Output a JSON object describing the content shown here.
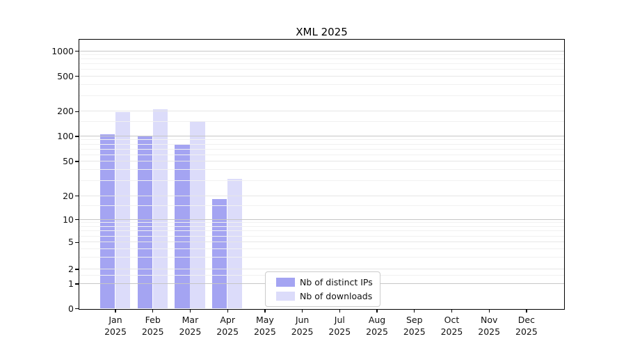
{
  "chart_data": {
    "type": "bar",
    "title": "XML 2025",
    "year_label": "2025",
    "categories": [
      "Jan",
      "Feb",
      "Mar",
      "Apr",
      "May",
      "Jun",
      "Jul",
      "Aug",
      "Sep",
      "Oct",
      "Nov",
      "Dec"
    ],
    "series": [
      {
        "name": "Nb of distinct IPs",
        "color": "#a4a4f2",
        "values": [
          105,
          100,
          80,
          18,
          0,
          0,
          0,
          0,
          0,
          0,
          0,
          0
        ]
      },
      {
        "name": "Nb of downloads",
        "color": "#dcdcfa",
        "values": [
          195,
          210,
          150,
          31,
          0,
          0,
          0,
          0,
          0,
          0,
          0,
          0
        ]
      }
    ],
    "yticks": [
      0,
      1,
      2,
      5,
      10,
      20,
      50,
      100,
      200,
      500,
      1000
    ],
    "yscale": "symlog",
    "ylim": [
      0,
      1300
    ],
    "xlabel": "",
    "ylabel": "",
    "grid": true,
    "legend_position": "lower center",
    "colors": {
      "axis": "#000000",
      "grid_major": "#c6c6c6",
      "grid_sub": "#e6e6e6",
      "grid_minor": "#f1f1f1"
    }
  }
}
